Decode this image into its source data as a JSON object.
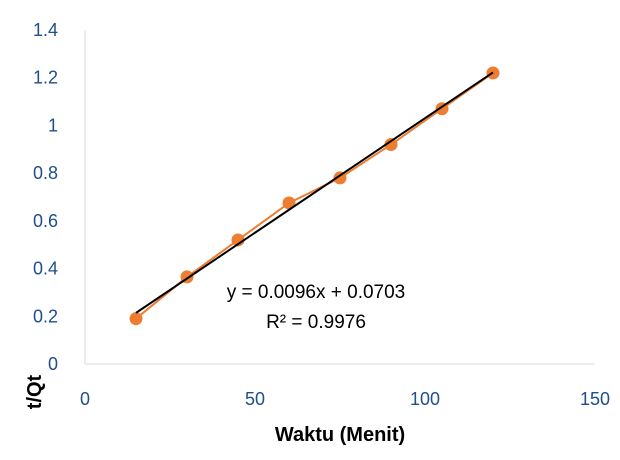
{
  "chart_data": {
    "type": "scatter",
    "xlabel": "Waktu (Menit)",
    "ylabel": "t/Qt",
    "xlim": [
      0,
      150
    ],
    "ylim": [
      0,
      1.4
    ],
    "x_ticks": [
      0,
      50,
      100,
      150
    ],
    "y_ticks": [
      0,
      0.2,
      0.4,
      0.6,
      0.8,
      1,
      1.2,
      1.4
    ],
    "x_tick_labels": [
      "0",
      "50",
      "100",
      "150"
    ],
    "y_tick_labels": [
      "0",
      "0.2",
      "0.4",
      "0.6",
      "0.8",
      "1",
      "1.2",
      "1.4"
    ],
    "grid": false,
    "series": [
      {
        "x": [
          15,
          30,
          45,
          60,
          75,
          90,
          105,
          120
        ],
        "y": [
          0.19,
          0.365,
          0.52,
          0.675,
          0.78,
          0.92,
          1.07,
          1.22
        ],
        "color": "#ed7d31",
        "marker": "circle",
        "connected": true
      }
    ],
    "trendline": {
      "type": "linear",
      "slope": 0.0096,
      "intercept": 0.0703,
      "x_range": [
        15,
        120
      ],
      "color": "#000000",
      "equation_label": "y = 0.0096x + 0.0703",
      "r2_label": "R² = 0.9976"
    }
  }
}
